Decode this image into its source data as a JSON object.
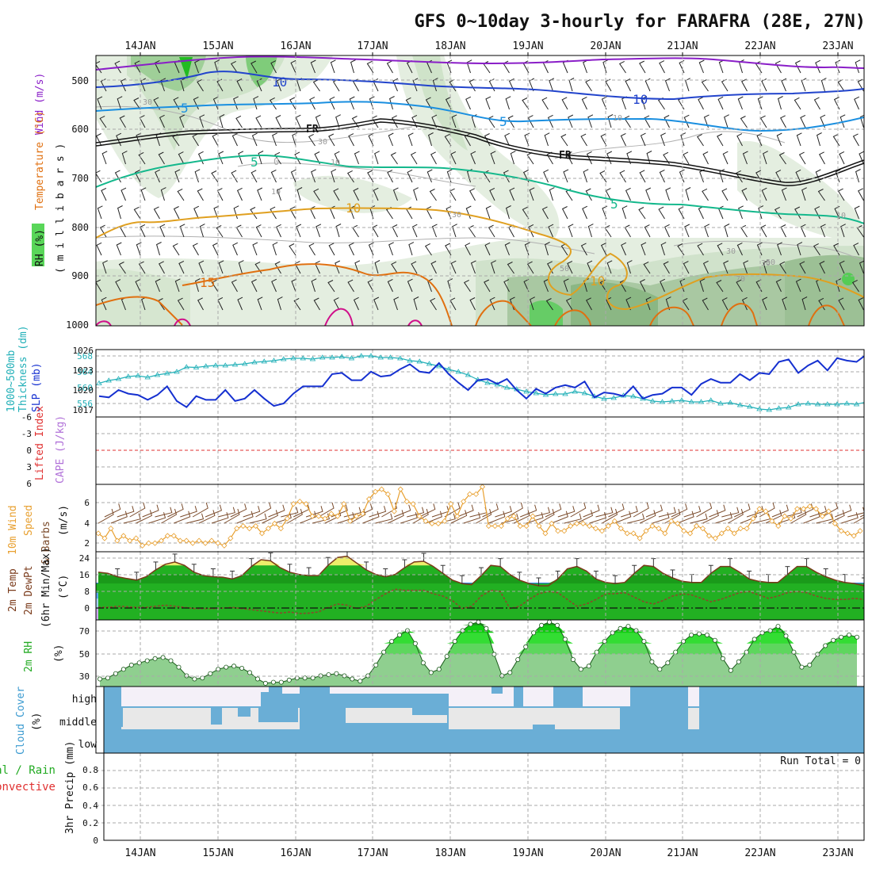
{
  "title": "GFS 0~10day 3-hourly for FARAFRA (28E, 27N)",
  "date_labels": [
    "14JAN",
    "15JAN",
    "16JAN",
    "17JAN",
    "18JAN",
    "19JAN",
    "20JAN",
    "21JAN",
    "22JAN",
    "23JAN"
  ],
  "colors": {
    "temp_purple": "#8a1ec8",
    "temp_blue": "#2244cc",
    "temp_sky": "#1a8fe0",
    "temp_green": "#14b88c",
    "temp_gold": "#e0a020",
    "temp_orange": "#e07010",
    "temp_magenta": "#d0108a",
    "thickness": "#22b0b8",
    "slp": "#1530d0",
    "li": "#e03030",
    "wind_line": "#e8a030",
    "barb": "#7a4a2a",
    "rh_green": "#22c822",
    "cloud": "#6aaed6",
    "precip_green": "#22aa22",
    "precip_red": "#e03030"
  },
  "panels": {
    "upper": {
      "axis_label_wind": "Wind (m/s)",
      "axis_label_temp": "Temperature (°C)",
      "axis_label_rh": "RH (%)",
      "axis_label_mb": "( m i l l i b a r s )",
      "ticks": [
        "500",
        "600",
        "700",
        "800",
        "900",
        "1000"
      ],
      "contour_labels": {
        "ten_upper": "10",
        "ten_blue": "10",
        "five_left": "5",
        "five_right": "5",
        "fr_left": "FR",
        "fr_right": "FR",
        "five_green": "5",
        "five_green_right": "5",
        "ten_gold": "10",
        "ten_gold_right": "10",
        "fifteen": "15",
        "zero": "0"
      },
      "rh_labels": [
        "30",
        "10",
        "10",
        "30",
        "30",
        "10",
        "30",
        "50",
        "30",
        "50",
        "10",
        "70"
      ]
    },
    "thickness": {
      "label_thk": "1000~500mb",
      "label_thk2": "Thickness (dm)",
      "label_slp": "SLP (mb)",
      "left_ticks": [
        "568",
        "564",
        "560",
        "556"
      ],
      "right_ticks": [
        "1026",
        "1023",
        "1020",
        "1017"
      ]
    },
    "cape": {
      "label_li": "Lifted Index",
      "label_cape": "CAPE (J/kg)",
      "ticks": [
        "-6",
        "-3",
        "0",
        "3",
        "6"
      ]
    },
    "wind10m": {
      "label1": "10m Wind",
      "label2": "Speed",
      "label3": "& Barbs",
      "label4": "(m/s)",
      "ticks": [
        "6",
        "4",
        "2"
      ]
    },
    "temp2m": {
      "label1": "2m Temp",
      "label2": "2m DewPt",
      "label3": "(6hr Min/Max)",
      "label4": "(°C)",
      "ticks": [
        "24",
        "16",
        "8",
        "0"
      ]
    },
    "rh2m": {
      "label1": "2m RH",
      "label2": "(%)",
      "ticks": [
        "70",
        "50",
        "30"
      ]
    },
    "cloud": {
      "label1": "Cloud Cover",
      "label2": "(%)",
      "levels": [
        "high",
        "middle",
        "low"
      ]
    },
    "precip": {
      "label_total": "Total / Rain",
      "label_conv": "Convective",
      "label_axis": "3hr Precip (mm)",
      "ticks": [
        "0.8",
        "0.6",
        "0.4",
        "0.2",
        "0"
      ],
      "run_total": "Run Total = 0"
    }
  },
  "chart_data": [
    {
      "type": "line",
      "title": "1000~500mb Thickness (dm) / SLP (mb)",
      "x": [
        "13JAN12",
        "13JAN15",
        "13JAN18",
        "13JAN21",
        "14JAN00",
        "14JAN03",
        "14JAN06",
        "14JAN09",
        "14JAN12",
        "14JAN15",
        "14JAN18",
        "14JAN21",
        "15JAN00",
        "15JAN03",
        "15JAN06",
        "15JAN09",
        "15JAN12",
        "15JAN15",
        "15JAN18",
        "15JAN21",
        "16JAN00",
        "16JAN03",
        "16JAN06",
        "16JAN09",
        "16JAN12",
        "16JAN15",
        "16JAN18",
        "16JAN21",
        "17JAN00",
        "17JAN03",
        "17JAN06",
        "17JAN09",
        "17JAN12",
        "17JAN15",
        "17JAN18",
        "17JAN21",
        "18JAN00",
        "18JAN03",
        "18JAN06",
        "18JAN09",
        "18JAN12",
        "18JAN15",
        "18JAN18",
        "18JAN21",
        "19JAN00",
        "19JAN03",
        "19JAN06",
        "19JAN09",
        "19JAN12",
        "19JAN15",
        "19JAN18",
        "19JAN21",
        "20JAN00",
        "20JAN03",
        "20JAN06",
        "20JAN09",
        "20JAN12",
        "20JAN15",
        "20JAN18",
        "20JAN21",
        "21JAN00",
        "21JAN03",
        "21JAN06",
        "21JAN09",
        "21JAN12",
        "21JAN15",
        "21JAN18",
        "21JAN21",
        "22JAN00",
        "22JAN03",
        "22JAN06",
        "22JAN09",
        "22JAN12",
        "22JAN15",
        "22JAN18",
        "22JAN21",
        "23JAN00",
        "23JAN03",
        "23JAN06",
        "23JAN09",
        "23JAN12"
      ],
      "series": [
        {
          "name": "1000~500mb Thickness (dm)",
          "axis": "left",
          "values": [
            561.5,
            562.2,
            562.6,
            563.2,
            563.4,
            563.0,
            563.6,
            564.0,
            564.4,
            565.6,
            565.5,
            565.8,
            566.0,
            566.0,
            566.2,
            566.4,
            566.8,
            567.0,
            567.2,
            567.6,
            567.8,
            567.8,
            567.6,
            568.0,
            568.0,
            568.2,
            567.8,
            568.4,
            568.4,
            568.0,
            568.0,
            567.8,
            567.2,
            567.0,
            566.4,
            565.8,
            565.0,
            564.4,
            563.6,
            562.4,
            561.6,
            561.2,
            560.4,
            560.0,
            559.4,
            559.0,
            558.6,
            558.8,
            558.8,
            559.4,
            559.0,
            558.2,
            557.6,
            557.8,
            558.4,
            558.2,
            557.6,
            557.0,
            556.8,
            557.0,
            557.2,
            556.8,
            556.8,
            557.2,
            556.4,
            556.6,
            556.0,
            555.6,
            555.0,
            554.8,
            555.2,
            555.4,
            556.2,
            556.4,
            556.2,
            556.2,
            556.2,
            556.4,
            556.2,
            556.8,
            556.8
          ]
        },
        {
          "name": "SLP (mb)",
          "axis": "right",
          "values": [
            1018.4,
            1018.2,
            1019.4,
            1018.8,
            1018.6,
            1017.8,
            1018.6,
            1020.0,
            1017.6,
            1016.6,
            1018.4,
            1017.8,
            1017.8,
            1019.4,
            1017.6,
            1018.0,
            1019.4,
            1018.0,
            1016.8,
            1017.2,
            1018.8,
            1020.0,
            1020.0,
            1020.0,
            1022.0,
            1022.2,
            1021.0,
            1021.0,
            1022.4,
            1021.6,
            1021.8,
            1022.8,
            1023.6,
            1022.4,
            1022.2,
            1023.8,
            1022.0,
            1020.6,
            1019.4,
            1021.0,
            1021.2,
            1020.4,
            1021.2,
            1019.4,
            1018.0,
            1019.6,
            1018.8,
            1019.8,
            1020.2,
            1019.8,
            1020.8,
            1018.2,
            1019.0,
            1018.8,
            1018.4,
            1020.0,
            1018.0,
            1018.6,
            1018.8,
            1019.8,
            1019.8,
            1018.6,
            1020.4,
            1021.2,
            1020.6,
            1020.6,
            1022.0,
            1021.0,
            1022.2,
            1022.0,
            1024.0,
            1024.4,
            1022.2,
            1023.4,
            1024.2,
            1022.6,
            1024.6,
            1024.2,
            1024.0,
            1025.2,
            1026.0
          ]
        }
      ],
      "ylim_left": [
        553,
        570
      ],
      "ylim_right": [
        1015,
        1026
      ],
      "grid": true
    },
    {
      "type": "line",
      "title": "10m Wind Speed & Barbs (m/s)",
      "x_step_hours": 3,
      "series": [
        {
          "name": "10m Wind Speed",
          "values": [
            3.0,
            2.6,
            3.4,
            2.4,
            2.8,
            2.4,
            2.6,
            2.0,
            2.2,
            2.2,
            2.4,
            2.8,
            2.8,
            2.4,
            2.4,
            2.2,
            2.4,
            2.2,
            2.4,
            2.2,
            2.0,
            2.6,
            3.4,
            3.6,
            3.4,
            3.6,
            3.0,
            3.4,
            3.8,
            3.4,
            4.2,
            5.4,
            5.6,
            5.4,
            4.4,
            4.4,
            4.2,
            4.6,
            4.4,
            5.4,
            4.0,
            4.4,
            4.6,
            5.8,
            6.4,
            6.6,
            6.2,
            4.8,
            6.6,
            5.6,
            5.4,
            4.4,
            4.0,
            3.8,
            3.8,
            4.0,
            5.4,
            4.4,
            5.6,
            6.2,
            6.2,
            6.8,
            3.6,
            3.6,
            3.6,
            4.2,
            4.4,
            3.6,
            3.6,
            4.4,
            3.6,
            3.0,
            3.8,
            3.2,
            3.2,
            3.6,
            3.8,
            3.8,
            3.6,
            3.4,
            3.2,
            3.6,
            4.0,
            3.4,
            3.0,
            3.0,
            2.6,
            3.2,
            3.6,
            3.4,
            3.0,
            4.0,
            3.8,
            3.2,
            3.0,
            3.6,
            3.4,
            2.8,
            2.6,
            3.0,
            3.4,
            3.0,
            3.4,
            3.4,
            4.2,
            5.0,
            4.8,
            4.0,
            3.6,
            4.4,
            4.2,
            5.0,
            5.0,
            5.2,
            5.0,
            4.4,
            4.8,
            3.8,
            3.2,
            3.0,
            2.8,
            3.2
          ]
        }
      ],
      "ylim": [
        1.5,
        7
      ],
      "grid": true
    },
    {
      "type": "area",
      "title": "2m Temp / 2m DewPt (6hr Min/Max) (°C)",
      "series": [
        {
          "name": "2m Temp",
          "values": [
            17.0,
            16.5,
            15.0,
            14.2,
            13.5,
            15.0,
            18.0,
            20.5,
            21.5,
            20.0,
            17.0,
            15.5,
            15.0,
            14.8,
            14.0,
            15.5,
            19.5,
            22.5,
            22.0,
            19.0,
            17.0,
            16.0,
            15.5,
            15.5,
            20.0,
            23.5,
            24.0,
            21.0,
            18.0,
            16.0,
            15.0,
            16.0,
            19.0,
            21.5,
            21.8,
            19.5,
            16.5,
            13.5,
            12.0,
            11.5,
            15.5,
            20.0,
            19.5,
            16.0,
            13.5,
            12.0,
            11.0,
            11.0,
            14.0,
            18.5,
            19.5,
            17.5,
            14.0,
            12.5,
            12.0,
            12.5,
            16.5,
            20.0,
            19.5,
            16.5,
            14.5,
            13.0,
            12.5,
            12.5,
            16.5,
            19.5,
            19.5,
            17.0,
            14.0,
            13.0,
            12.5,
            12.5,
            16.0,
            19.5,
            19.5,
            17.0,
            15.0,
            13.5,
            12.5,
            12.0,
            11.0
          ]
        },
        {
          "name": "2m DewPt",
          "values": [
            1.5,
            1.5,
            2.0,
            1.8,
            1.5,
            1.5,
            2.0,
            2.5,
            2.0,
            1.5,
            1.0,
            1.0,
            1.0,
            1.2,
            1.5,
            1.0,
            0.5,
            0.0,
            -0.5,
            -1.0,
            -0.5,
            -1.2,
            -1.0,
            -0.5,
            1.5,
            3.0,
            2.5,
            1.0,
            2.0,
            5.0,
            7.5,
            9.5,
            9.0,
            9.0,
            9.0,
            7.5,
            6.5,
            4.5,
            1.0,
            2.0,
            6.5,
            9.0,
            8.5,
            1.0,
            2.0,
            5.0,
            7.5,
            8.5,
            8.0,
            5.0,
            2.0,
            3.0,
            5.0,
            7.5,
            7.5,
            8.0,
            6.0,
            4.0,
            3.0,
            4.5,
            6.5,
            7.5,
            7.0,
            5.5,
            4.0,
            5.0,
            6.5,
            8.0,
            8.5,
            7.0,
            5.5,
            6.5,
            8.0,
            8.5,
            8.0,
            6.5,
            5.5,
            5.0,
            5.0,
            5.5,
            5.0
          ]
        }
      ],
      "ylim": [
        -4,
        26
      ],
      "grid": true
    },
    {
      "type": "area",
      "title": "2m RH (%)",
      "series": [
        {
          "name": "2m RH",
          "values": [
            27,
            28,
            32,
            36,
            40,
            42,
            44,
            46,
            47,
            44,
            38,
            30,
            27,
            28,
            32,
            36,
            38,
            39,
            37,
            33,
            27,
            23,
            24,
            24,
            26,
            28,
            28,
            28,
            30,
            31,
            32,
            30,
            27,
            25,
            30,
            40,
            52,
            62,
            68,
            72,
            60,
            42,
            33,
            36,
            48,
            62,
            72,
            78,
            80,
            74,
            50,
            30,
            33,
            45,
            57,
            70,
            77,
            80,
            77,
            64,
            45,
            36,
            39,
            52,
            62,
            70,
            74,
            76,
            72,
            62,
            43,
            36,
            42,
            52,
            62,
            68,
            69,
            68,
            63,
            46,
            35,
            43,
            52,
            64,
            70,
            72,
            76,
            67,
            52,
            38,
            40,
            50,
            58,
            63,
            66,
            68,
            66
          ]
        }
      ],
      "ylim": [
        20,
        82
      ],
      "grid": true
    }
  ]
}
